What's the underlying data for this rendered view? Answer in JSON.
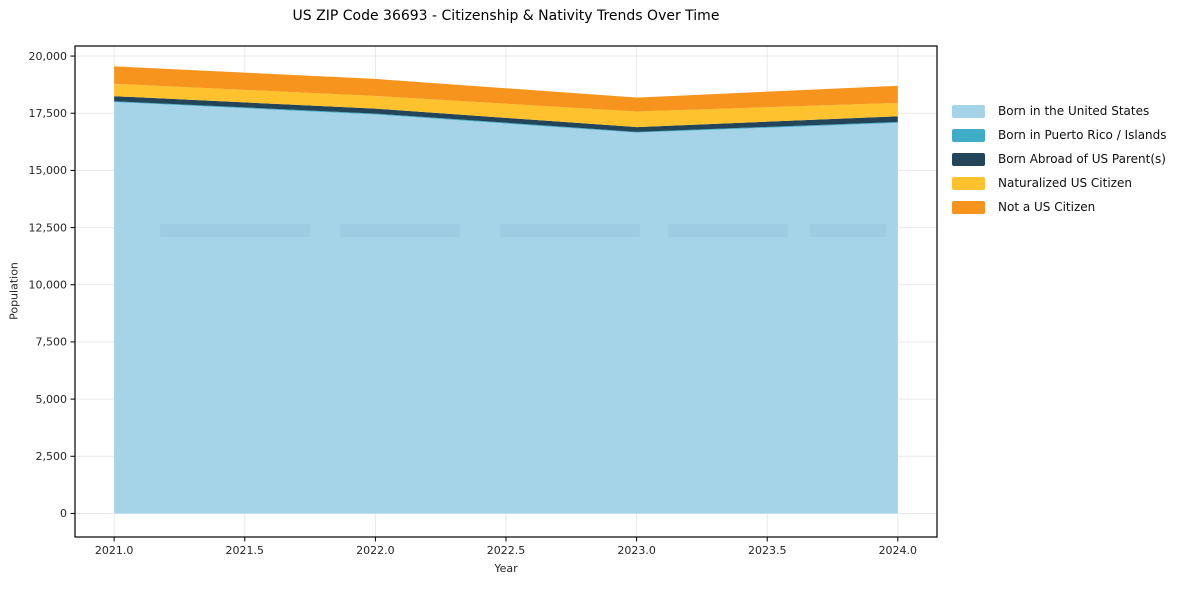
{
  "page": {
    "background": "#ffffff"
  },
  "chart_data": {
    "type": "area",
    "title": "US ZIP Code 36693 - Citizenship & Nativity Trends Over Time",
    "xlabel": "Year",
    "ylabel": "Population",
    "x": [
      2021,
      2022,
      2023,
      2024
    ],
    "series": [
      {
        "name": "Born in the United States",
        "slug": "born-in-us",
        "color": "#A5D3E8",
        "values": [
          17990,
          17445,
          16650,
          17080
        ]
      },
      {
        "name": "Born in Puerto Rico / Islands",
        "slug": "born-pr-islands",
        "color": "#41ACC8",
        "values": [
          35,
          40,
          35,
          40
        ]
      },
      {
        "name": "Born Abroad of US Parent(s)",
        "slug": "born-abroad",
        "color": "#23455A",
        "values": [
          220,
          215,
          210,
          245
        ]
      },
      {
        "name": "Naturalized US Citizen",
        "slug": "naturalized",
        "color": "#FDC22D",
        "values": [
          545,
          555,
          680,
          590
        ]
      },
      {
        "name": "Not a US Citizen",
        "slug": "not-citizen",
        "color": "#F7941D",
        "values": [
          760,
          745,
          610,
          745
        ]
      }
    ],
    "stack_totals": [
      19550,
      19000,
      18185,
      18700
    ],
    "xticks": [
      {
        "v": 2021.0,
        "label": "2021.0"
      },
      {
        "v": 2021.5,
        "label": "2021.5"
      },
      {
        "v": 2022.0,
        "label": "2022.0"
      },
      {
        "v": 2022.5,
        "label": "2022.5"
      },
      {
        "v": 2023.0,
        "label": "2023.0"
      },
      {
        "v": 2023.5,
        "label": "2023.5"
      },
      {
        "v": 2024.0,
        "label": "2024.0"
      }
    ],
    "yticks": [
      {
        "v": 0,
        "label": "0"
      },
      {
        "v": 2500,
        "label": "2,500"
      },
      {
        "v": 5000,
        "label": "5,000"
      },
      {
        "v": 7500,
        "label": "7,500"
      },
      {
        "v": 10000,
        "label": "10,000"
      },
      {
        "v": 12500,
        "label": "12,500"
      },
      {
        "v": 15000,
        "label": "15,000"
      },
      {
        "v": 17500,
        "label": "17,500"
      },
      {
        "v": 20000,
        "label": "20,000"
      }
    ],
    "xlim": [
      2020.85,
      2024.15
    ],
    "ylim": [
      -1030,
      20440
    ],
    "grid": true,
    "legend_position": "right-outside",
    "grid_color": "#e9e9e9",
    "axis_color": "#000000",
    "tick_label_color": "#262626"
  }
}
